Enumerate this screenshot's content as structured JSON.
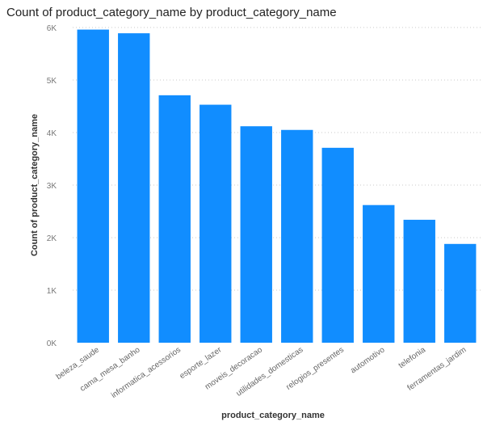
{
  "chart_data": {
    "type": "bar",
    "title": "Count of product_category_name by product_category_name",
    "xlabel": "product_category_name",
    "ylabel": "Count of product_category_name",
    "categories": [
      "beleza_saude",
      "cama_mesa_banho",
      "informatica_acessorios",
      "esporte_lazer",
      "moveis_decoracao",
      "utilidades_domesticas",
      "relogios_presentes",
      "automotivo",
      "telefonia",
      "ferramentas_jardim"
    ],
    "values": [
      5960,
      5890,
      4710,
      4530,
      4120,
      4050,
      3710,
      2620,
      2340,
      1880
    ],
    "ylim": [
      0,
      6000
    ],
    "yticks": [
      0,
      1000,
      2000,
      3000,
      4000,
      5000,
      6000
    ],
    "ytick_labels": [
      "0K",
      "1K",
      "2K",
      "3K",
      "4K",
      "5K",
      "6K"
    ],
    "grid": true,
    "bar_color": "#118DFF"
  }
}
